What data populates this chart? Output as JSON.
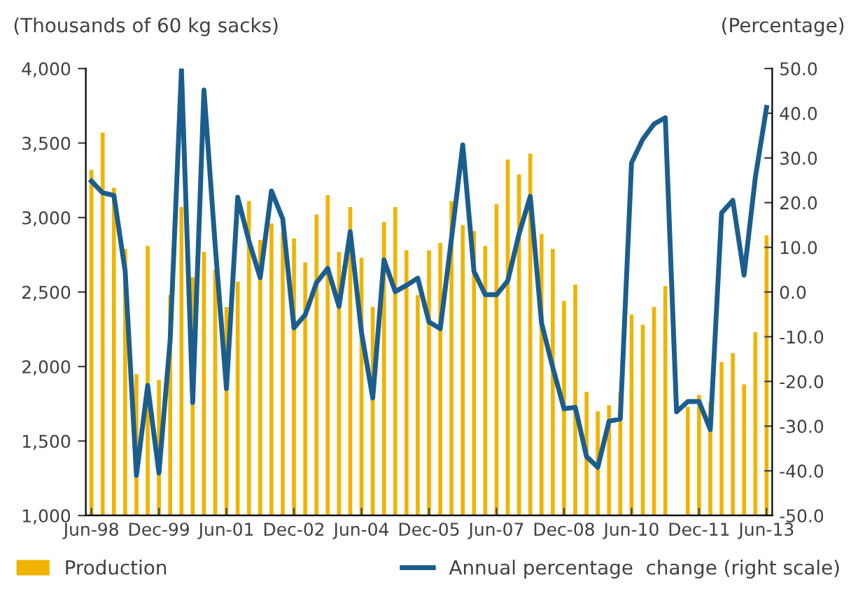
{
  "chart_data": {
    "type": "bar",
    "ylabel": "(Thousands of 60 kg sacks)",
    "y2label": "(Percentage)",
    "categories": [
      "Jun-98",
      null,
      null,
      null,
      null,
      null,
      "Dec-99",
      null,
      null,
      null,
      null,
      null,
      "Jun-01",
      null,
      null,
      null,
      null,
      null,
      "Dec-02",
      null,
      null,
      null,
      null,
      null,
      "Jun-04",
      null,
      null,
      null,
      null,
      null,
      "Dec-05",
      null,
      null,
      null,
      null,
      null,
      "Jun-07",
      null,
      null,
      null,
      null,
      null,
      "Dec-08",
      null,
      null,
      null,
      null,
      null,
      "Jun-10",
      null,
      null,
      null,
      null,
      null,
      "Dec-11",
      null,
      null,
      null,
      null,
      null,
      "Jun-13"
    ],
    "series": [
      {
        "name": "Production",
        "color": "#f0b400",
        "values": [
          3320,
          3570,
          3200,
          2790,
          1950,
          2810,
          1910,
          2480,
          3070,
          2600,
          2770,
          2650,
          2400,
          2570,
          3110,
          2850,
          2960,
          2900,
          2860,
          2700,
          3020,
          3150,
          2770,
          3070,
          2730,
          2400,
          2970,
          3070,
          2780,
          2480,
          2780,
          2830,
          3110,
          2950,
          2910,
          2810,
          3090,
          3390,
          3290,
          3430,
          2890,
          2790,
          2440,
          2550,
          1830,
          1700,
          1740,
          1830,
          2350,
          2280,
          2400,
          2540,
          null,
          1730,
          1810,
          1760,
          2030,
          2090,
          1880,
          2230,
          2880
        ]
      },
      {
        "name": "Annual percentage  change (right scale)",
        "type": "line",
        "axis": "y2",
        "color": "#1b5e8e",
        "values": [
          24.8,
          22.2,
          21.6,
          4.6,
          -41.0,
          -20.9,
          -40.5,
          -10.6,
          49.7,
          -24.7,
          45.2,
          10.4,
          -21.6,
          21.2,
          11.4,
          3.2,
          22.6,
          16.4,
          -8.0,
          -5.1,
          2.1,
          5.3,
          -3.2,
          13.5,
          -9.0,
          -23.7,
          7.2,
          0.1,
          1.5,
          3.1,
          -6.7,
          -8.2,
          12.0,
          32.9,
          4.6,
          -0.6,
          -0.6,
          2.5,
          13.0,
          21.4,
          -6.9,
          -16.9,
          -26.1,
          -25.8,
          -36.8,
          -39.2,
          -28.9,
          -28.4,
          28.9,
          34.2,
          37.6,
          39.0,
          -26.8,
          -24.5,
          -24.5,
          -30.8,
          17.7,
          20.5,
          3.8,
          25.6,
          41.3
        ]
      }
    ],
    "ylim": [
      1000,
      4000
    ],
    "yticks": [
      {
        "value": 1000,
        "label": "1,000"
      },
      {
        "value": 1500,
        "label": "1,500"
      },
      {
        "value": 2000,
        "label": "2,000"
      },
      {
        "value": 2500,
        "label": "2,500"
      },
      {
        "value": 3000,
        "label": "3,000"
      },
      {
        "value": 3500,
        "label": "3,500"
      },
      {
        "value": 4000,
        "label": "4,000"
      }
    ],
    "y2lim": [
      -50,
      50
    ],
    "y2ticks": [
      {
        "value": 50,
        "label": "50.0"
      },
      {
        "value": 40,
        "label": "40.0"
      },
      {
        "value": 30,
        "label": "30.0"
      },
      {
        "value": 20,
        "label": "20.0"
      },
      {
        "value": 10,
        "label": "10.0"
      },
      {
        "value": 0,
        "label": "0.0"
      },
      {
        "value": -10,
        "label": "-10.0"
      },
      {
        "value": -20,
        "label": "-20.0"
      },
      {
        "value": -30,
        "label": "-30.0"
      },
      {
        "value": -40,
        "label": "-40.0"
      },
      {
        "value": -50,
        "label": "-50.0"
      }
    ],
    "legend": "bottom",
    "grid": false
  }
}
